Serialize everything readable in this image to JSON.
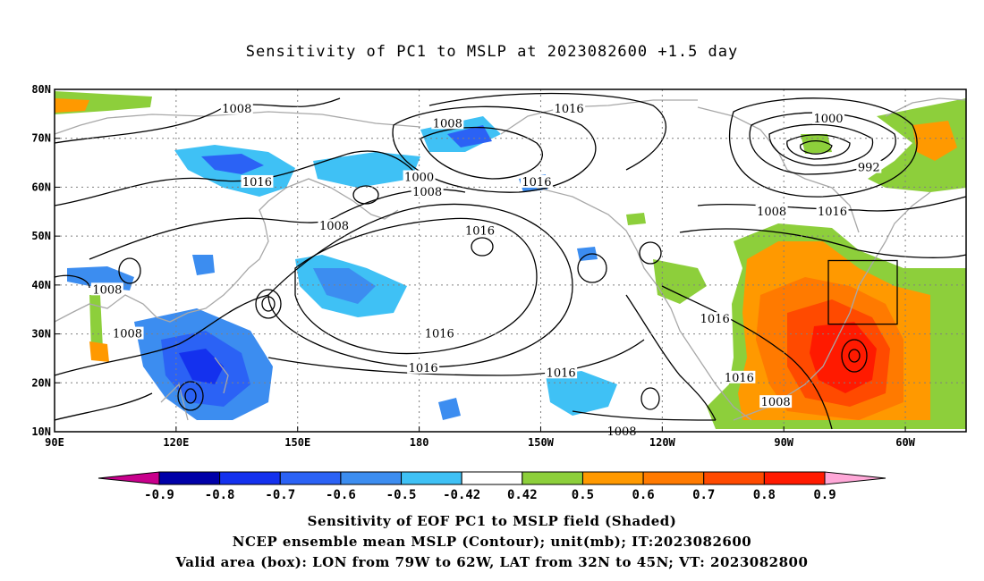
{
  "title": "Sensitivity of PC1 to MSLP at 2023082600 +1.5 day",
  "map": {
    "lon_ticks": [
      "90E",
      "120E",
      "150E",
      "180",
      "150W",
      "120W",
      "90W",
      "60W"
    ],
    "lat_ticks": [
      "80N",
      "70N",
      "60N",
      "50N",
      "40N",
      "30N",
      "20N",
      "10N"
    ],
    "lon_range": [
      90,
      315
    ],
    "lat_range": [
      10,
      80
    ],
    "grid": true,
    "valid_box": {
      "lon_west": -79,
      "lon_east": -62,
      "lat_south": 32,
      "lat_north": 45
    },
    "contour_labels": [
      {
        "text": "1008",
        "lon": 135,
        "lat": 76
      },
      {
        "text": "1016",
        "lon": 140,
        "lat": 61
      },
      {
        "text": "1008",
        "lon": 159,
        "lat": 52
      },
      {
        "text": "1016",
        "lon": 195,
        "lat": 51
      },
      {
        "text": "1008",
        "lon": 187,
        "lat": 73
      },
      {
        "text": "1000",
        "lon": 180,
        "lat": 62
      },
      {
        "text": "1008",
        "lon": 182,
        "lat": 59
      },
      {
        "text": "1016",
        "lon": 217,
        "lat": 76
      },
      {
        "text": "1016",
        "lon": 209,
        "lat": 61
      },
      {
        "text": "1000",
        "lon": 281,
        "lat": 74
      },
      {
        "text": "992",
        "lon": 291,
        "lat": 64
      },
      {
        "text": "1008",
        "lon": 267,
        "lat": 55
      },
      {
        "text": "1016",
        "lon": 282,
        "lat": 55
      },
      {
        "text": "1008",
        "lon": 103,
        "lat": 39
      },
      {
        "text": "1008",
        "lon": 108,
        "lat": 30
      },
      {
        "text": "1016",
        "lon": 185,
        "lat": 30
      },
      {
        "text": "1016",
        "lon": 181,
        "lat": 23
      },
      {
        "text": "1016",
        "lon": 253,
        "lat": 33
      },
      {
        "text": "1016",
        "lon": 215,
        "lat": 22
      },
      {
        "text": "1016",
        "lon": 259,
        "lat": 21
      },
      {
        "text": "1008",
        "lon": 268,
        "lat": 16
      },
      {
        "text": "1008",
        "lon": 230,
        "lat": 10
      }
    ]
  },
  "colorbar": {
    "labels": [
      "-0.9",
      "-0.8",
      "-0.7",
      "-0.6",
      "-0.5",
      "-0.42",
      "0.42",
      "0.5",
      "0.6",
      "0.7",
      "0.8",
      "0.9"
    ],
    "colors": [
      "#0000a8",
      "#1431ee",
      "#2b62f5",
      "#3c8df0",
      "#3fc1f5",
      "#ffffff",
      "#8dcf3b",
      "#ff9900",
      "#ff7a00",
      "#ff4a00",
      "#ff1a00"
    ],
    "low_extend_color": "#c8008c",
    "high_extend_color": "#ffa8d8"
  },
  "captions": [
    "Sensitivity of EOF PC1 to MSLP field (Shaded)",
    "NCEP ensemble mean MSLP (Contour); unit(mb); IT:2023082600",
    "Valid area (box): LON from 79W to 62W, LAT from 32N to 45N; VT: 2023082800"
  ]
}
